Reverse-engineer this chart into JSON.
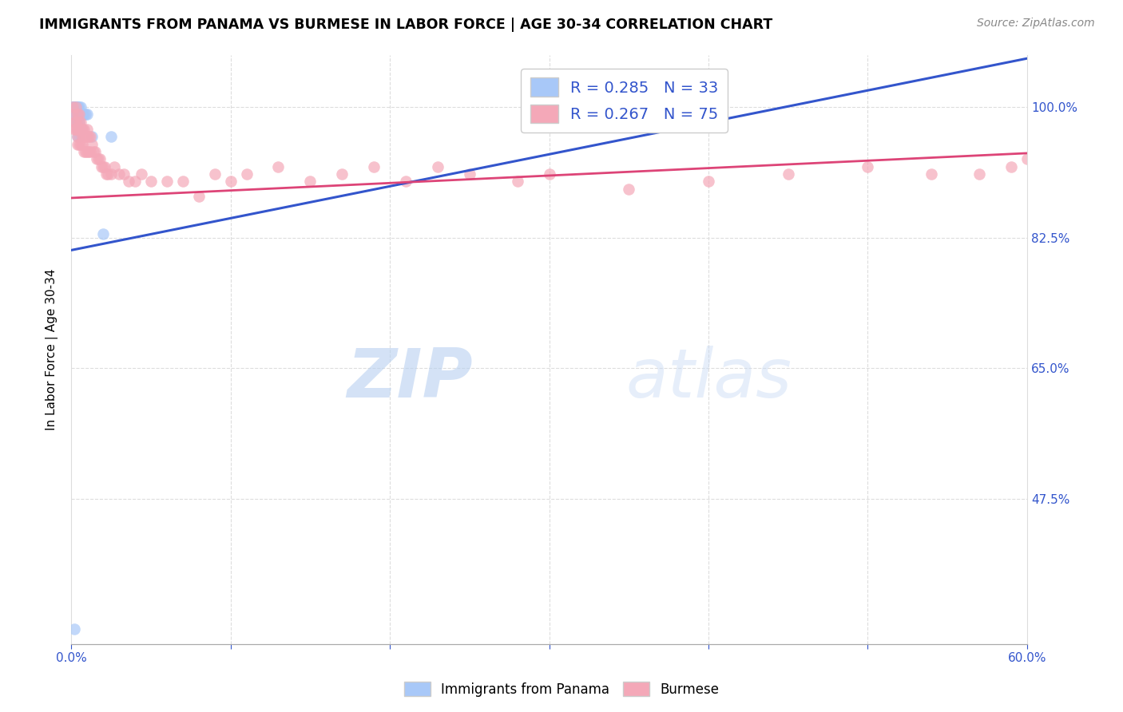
{
  "title": "IMMIGRANTS FROM PANAMA VS BURMESE IN LABOR FORCE | AGE 30-34 CORRELATION CHART",
  "source": "Source: ZipAtlas.com",
  "ylabel": "In Labor Force | Age 30-34",
  "ytick_labels": [
    "100.0%",
    "82.5%",
    "65.0%",
    "47.5%"
  ],
  "ytick_values": [
    1.0,
    0.825,
    0.65,
    0.475
  ],
  "xlim": [
    0.0,
    0.6
  ],
  "ylim": [
    0.28,
    1.07
  ],
  "legend_R1": "R = 0.285",
  "legend_N1": "N = 33",
  "legend_R2": "R = 0.267",
  "legend_N2": "N = 75",
  "color_panama": "#a8c8f8",
  "color_burmese": "#f4a8b8",
  "color_line_panama": "#3355cc",
  "color_line_burmese": "#dd4477",
  "color_text_blue": "#3355cc",
  "color_watermark": "#d0e4f8",
  "watermark_zip": "ZIP",
  "watermark_atlas": "atlas",
  "panama_trend_x": [
    0.0,
    0.6
  ],
  "panama_trend_y": [
    0.808,
    1.065
  ],
  "burmese_trend_x": [
    0.0,
    0.6
  ],
  "burmese_trend_y": [
    0.878,
    0.938
  ],
  "panama_x": [
    0.001,
    0.001,
    0.002,
    0.002,
    0.002,
    0.003,
    0.003,
    0.003,
    0.003,
    0.004,
    0.004,
    0.004,
    0.004,
    0.004,
    0.004,
    0.005,
    0.005,
    0.005,
    0.005,
    0.005,
    0.006,
    0.006,
    0.006,
    0.007,
    0.007,
    0.008,
    0.009,
    0.01,
    0.013,
    0.02,
    0.025,
    0.002,
    0.003
  ],
  "panama_y": [
    1.0,
    1.0,
    1.0,
    1.0,
    0.99,
    1.0,
    1.0,
    0.99,
    0.98,
    1.0,
    1.0,
    0.99,
    0.98,
    0.97,
    0.96,
    1.0,
    0.99,
    0.98,
    0.97,
    0.96,
    1.0,
    0.99,
    0.97,
    0.99,
    0.97,
    0.99,
    0.99,
    0.99,
    0.96,
    0.83,
    0.96,
    0.3,
    0.27
  ],
  "burmese_x": [
    0.001,
    0.001,
    0.002,
    0.002,
    0.003,
    0.003,
    0.003,
    0.004,
    0.004,
    0.004,
    0.004,
    0.005,
    0.005,
    0.005,
    0.005,
    0.006,
    0.006,
    0.006,
    0.007,
    0.007,
    0.007,
    0.008,
    0.008,
    0.008,
    0.009,
    0.009,
    0.01,
    0.01,
    0.01,
    0.011,
    0.011,
    0.012,
    0.012,
    0.013,
    0.014,
    0.015,
    0.016,
    0.017,
    0.018,
    0.019,
    0.02,
    0.021,
    0.022,
    0.023,
    0.025,
    0.027,
    0.03,
    0.033,
    0.036,
    0.04,
    0.044,
    0.05,
    0.06,
    0.07,
    0.08,
    0.09,
    0.1,
    0.11,
    0.13,
    0.15,
    0.17,
    0.19,
    0.21,
    0.23,
    0.25,
    0.28,
    0.3,
    0.35,
    0.4,
    0.45,
    0.5,
    0.54,
    0.57,
    0.59,
    0.6
  ],
  "burmese_y": [
    1.0,
    0.99,
    0.98,
    0.97,
    1.0,
    0.98,
    0.97,
    0.99,
    0.97,
    0.96,
    0.95,
    0.99,
    0.98,
    0.97,
    0.95,
    0.98,
    0.97,
    0.95,
    0.97,
    0.96,
    0.95,
    0.97,
    0.96,
    0.94,
    0.96,
    0.94,
    0.97,
    0.96,
    0.94,
    0.96,
    0.94,
    0.96,
    0.94,
    0.95,
    0.94,
    0.94,
    0.93,
    0.93,
    0.93,
    0.92,
    0.92,
    0.92,
    0.91,
    0.91,
    0.91,
    0.92,
    0.91,
    0.91,
    0.9,
    0.9,
    0.91,
    0.9,
    0.9,
    0.9,
    0.88,
    0.91,
    0.9,
    0.91,
    0.92,
    0.9,
    0.91,
    0.92,
    0.9,
    0.92,
    0.91,
    0.9,
    0.91,
    0.89,
    0.9,
    0.91,
    0.92,
    0.91,
    0.91,
    0.92,
    0.93
  ],
  "grid_color": "#dddddd",
  "title_fontsize": 12.5,
  "axis_label_fontsize": 11,
  "tick_fontsize": 11,
  "legend_fontsize": 14,
  "source_fontsize": 10
}
